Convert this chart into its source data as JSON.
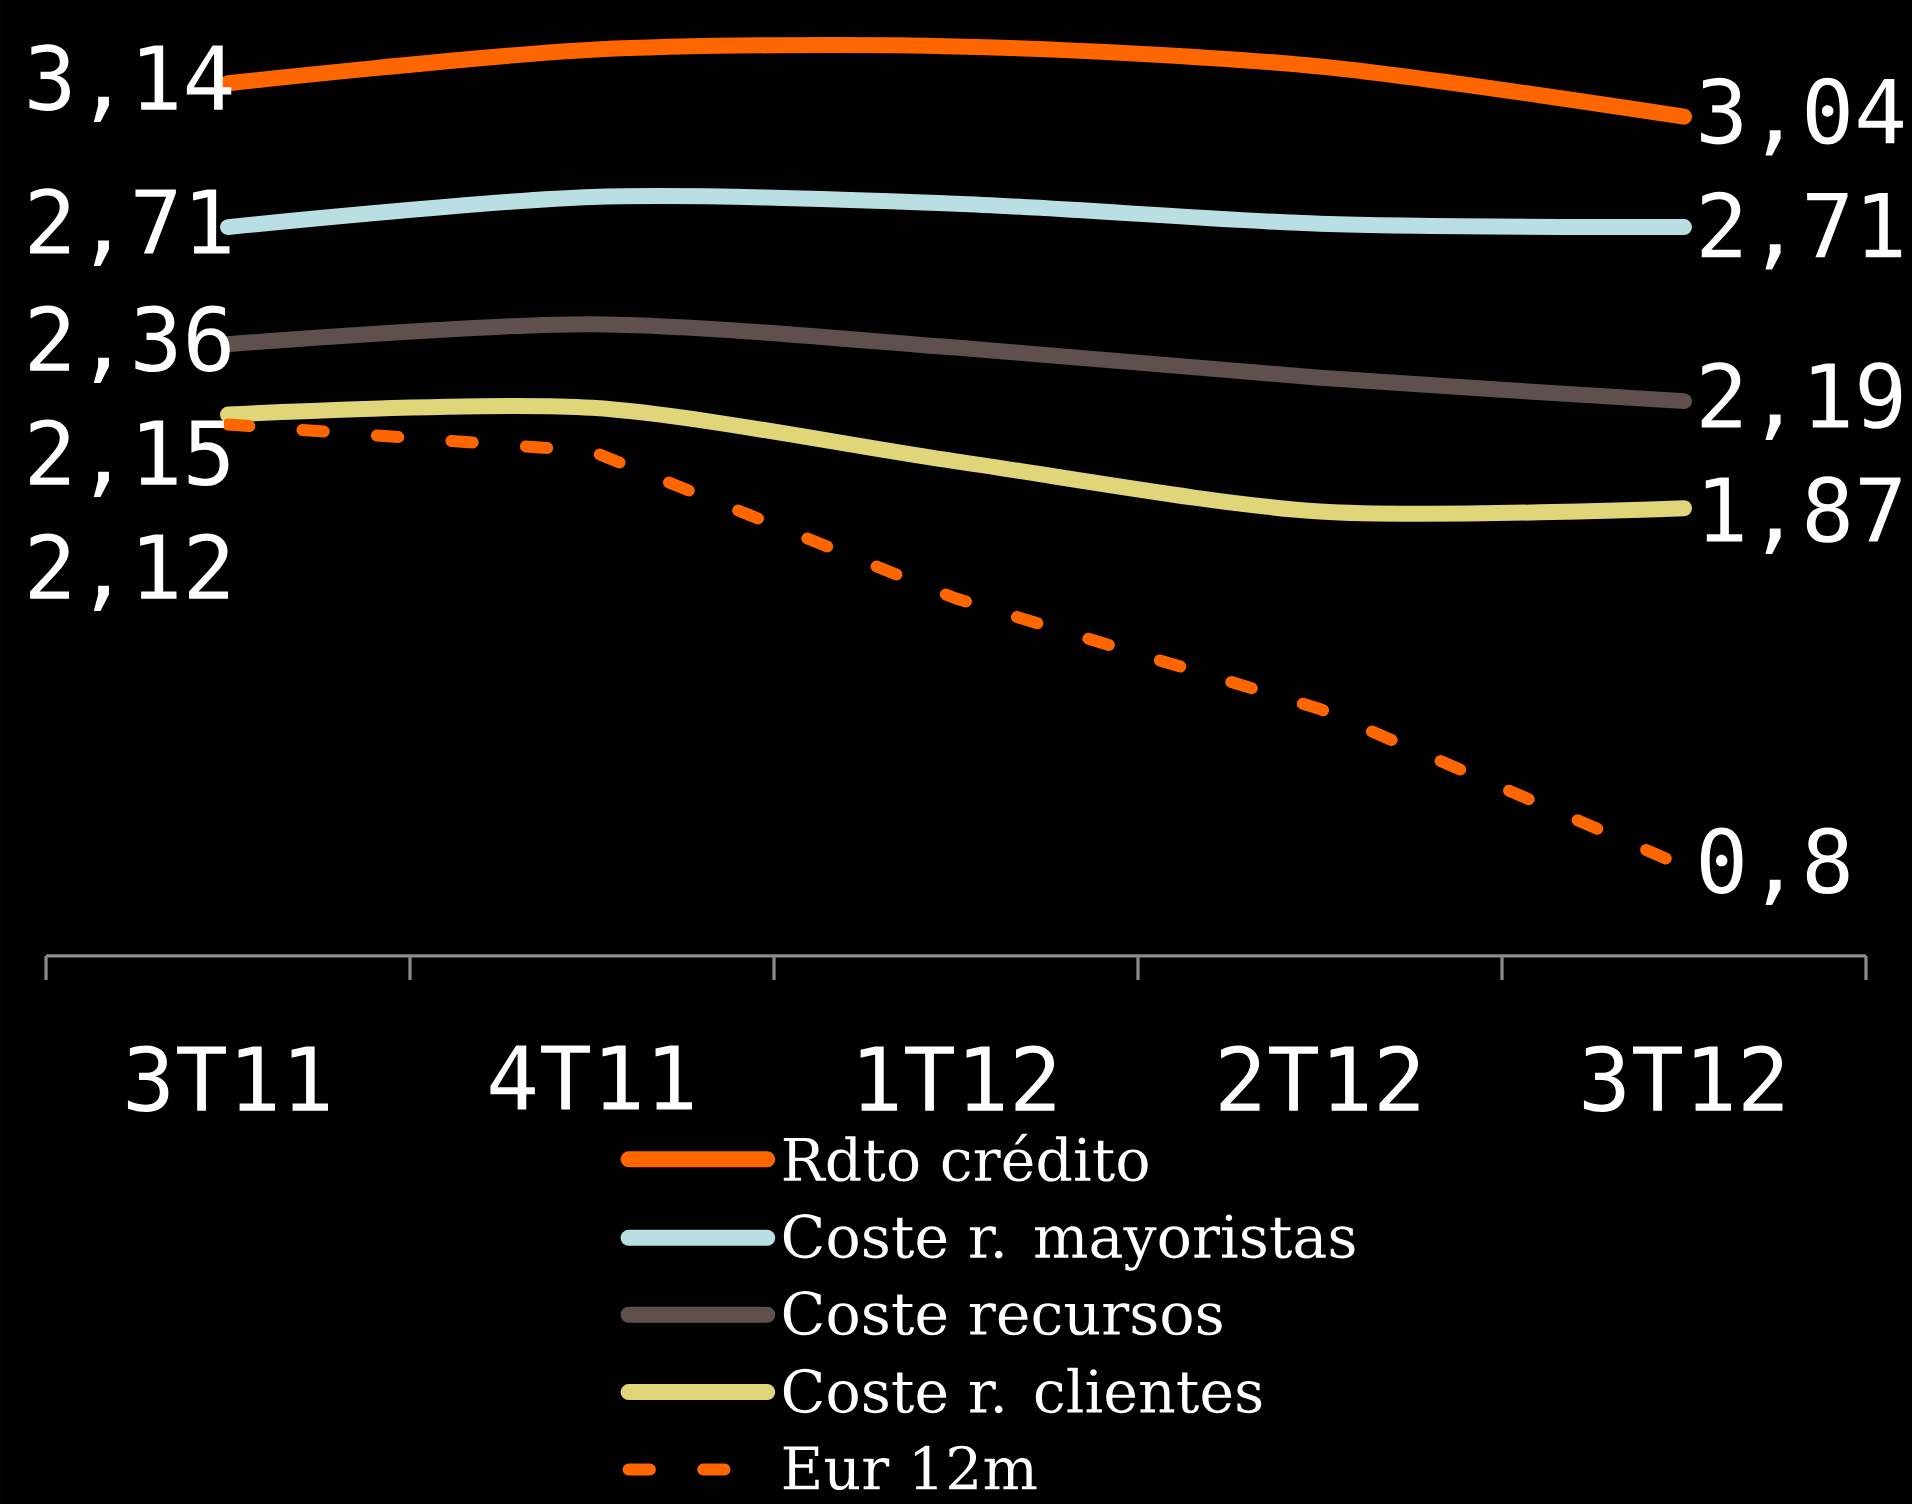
{
  "chart_data": {
    "type": "line",
    "categories": [
      "3T11",
      "4T11",
      "1T12",
      "2T12",
      "3T12"
    ],
    "series": [
      {
        "name": "Rdto crédito",
        "color": "#ff6600",
        "values": [
          3.14,
          3.24,
          3.25,
          3.19,
          3.04
        ],
        "value_labels": [
          "3,14",
          null,
          null,
          null,
          "3,04"
        ]
      },
      {
        "name": "Coste r. mayoristas",
        "color": "#b9dfe2",
        "values": [
          2.71,
          2.8,
          2.78,
          2.72,
          2.71
        ],
        "value_labels": [
          "2,71",
          null,
          null,
          null,
          "2,71"
        ]
      },
      {
        "name": "Coste recursos",
        "color": "#5e504c",
        "values": [
          2.36,
          2.42,
          2.35,
          2.26,
          2.19
        ],
        "value_labels": [
          "2,36",
          null,
          null,
          null,
          "2,19"
        ]
      },
      {
        "name": "Coste r. clientes",
        "color": "#e0d679",
        "values": [
          2.15,
          2.17,
          2.01,
          1.86,
          1.87
        ],
        "value_labels": [
          "2,15",
          null,
          null,
          null,
          "1,87"
        ]
      },
      {
        "name": "Eur 12m",
        "color": "#ff6600",
        "values": [
          2.12,
          2.04,
          1.6,
          1.27,
          0.8
        ],
        "value_labels": [
          "2,12",
          null,
          null,
          null,
          "0,8"
        ],
        "line_style": "dashed"
      }
    ],
    "legend": "bottom"
  }
}
